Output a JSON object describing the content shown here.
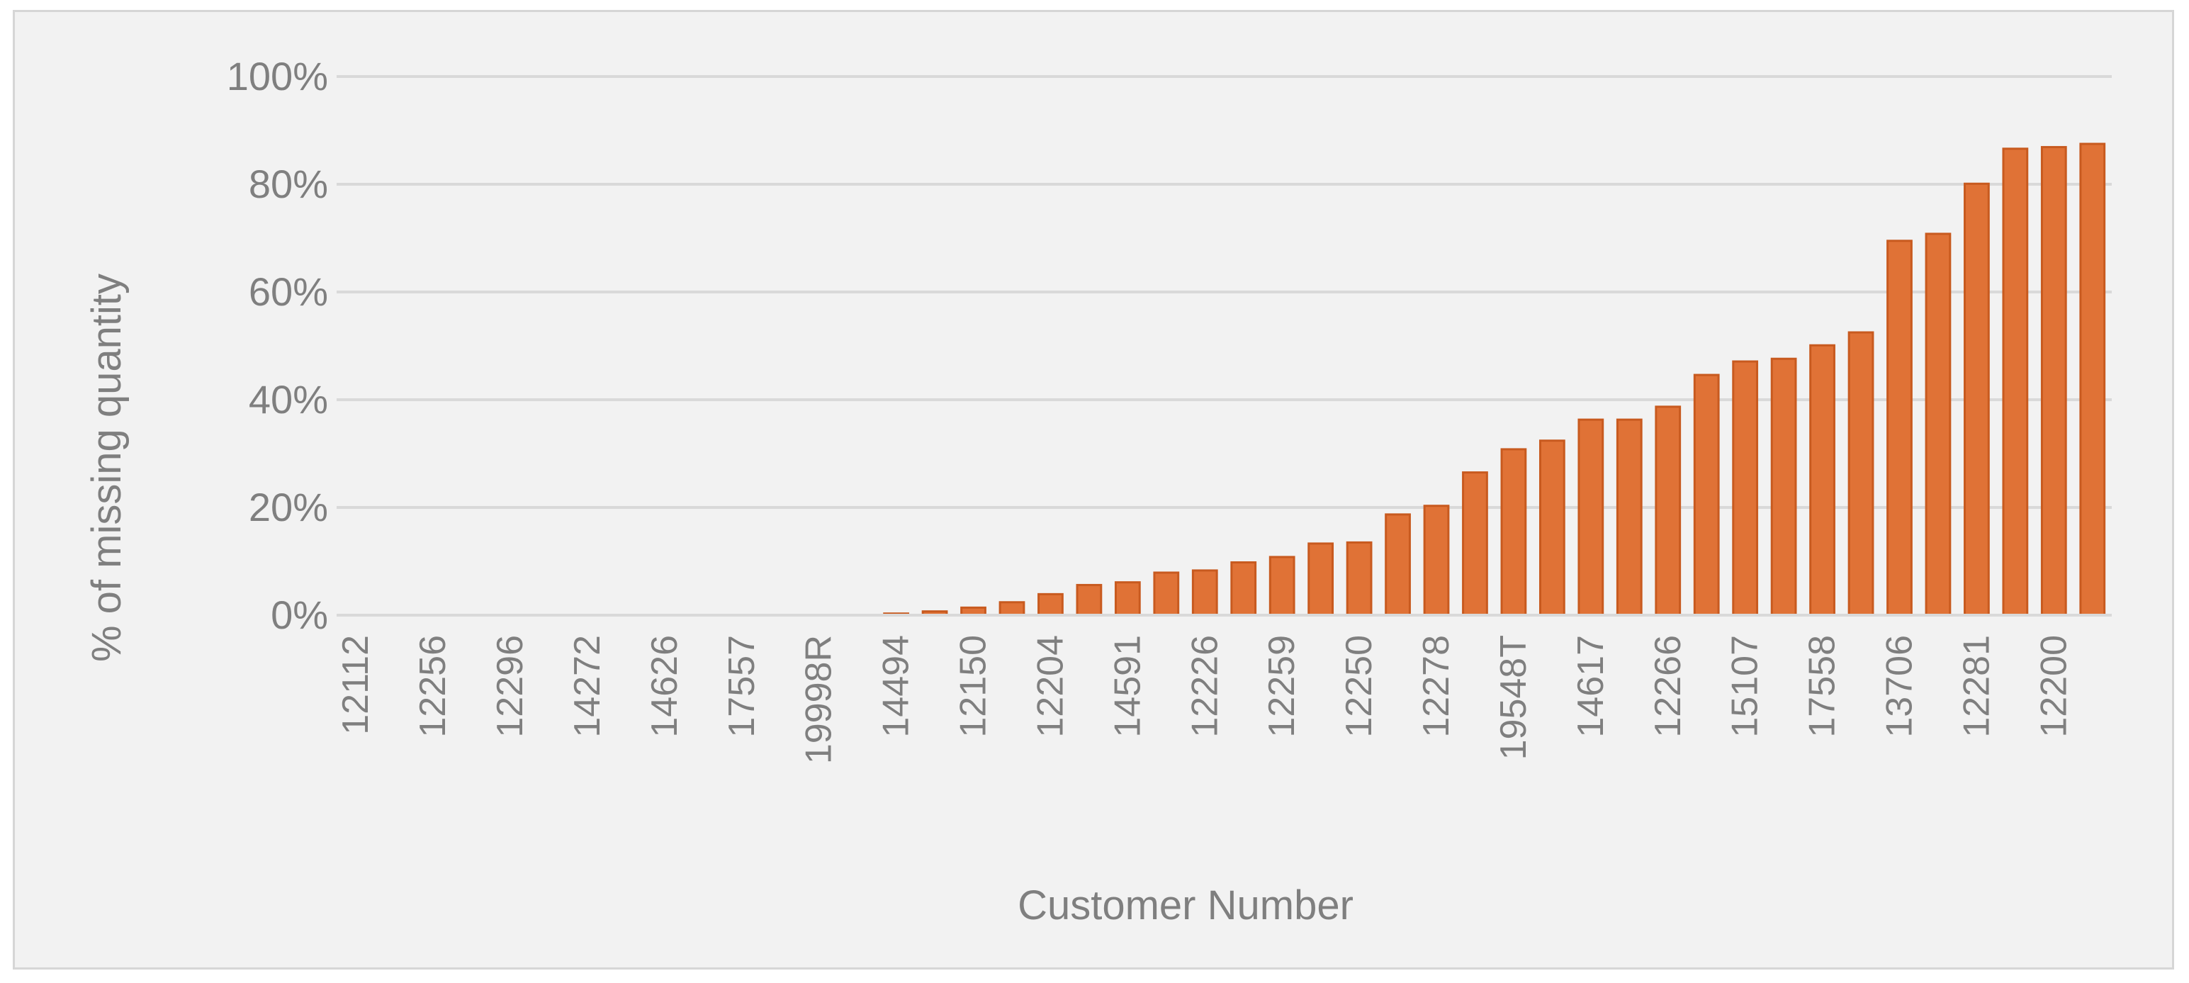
{
  "chart_data": {
    "type": "bar",
    "xlabel": "Customer Number",
    "ylabel": "% of missing quantity",
    "ylim": [
      0,
      100
    ],
    "yticks": [
      0,
      20,
      40,
      60,
      80,
      100
    ],
    "ytick_suffix": "%",
    "grid": true,
    "bar_color": "#e07236",
    "bar_edge_color": "#c85a1f",
    "categories": [
      {
        "label": "12112",
        "value": 0
      },
      {
        "label": "",
        "value": 0
      },
      {
        "label": "12256",
        "value": 0
      },
      {
        "label": "",
        "value": 0
      },
      {
        "label": "12296",
        "value": 0
      },
      {
        "label": "",
        "value": 0
      },
      {
        "label": "14272",
        "value": 0
      },
      {
        "label": "",
        "value": 0
      },
      {
        "label": "14626",
        "value": 0
      },
      {
        "label": "",
        "value": 0
      },
      {
        "label": "17557",
        "value": 0
      },
      {
        "label": "",
        "value": 0
      },
      {
        "label": "19998R",
        "value": 0
      },
      {
        "label": "",
        "value": 0
      },
      {
        "label": "14494",
        "value": 0.3
      },
      {
        "label": "",
        "value": 0.7
      },
      {
        "label": "12150",
        "value": 1.4
      },
      {
        "label": "",
        "value": 2.4
      },
      {
        "label": "12204",
        "value": 3.9
      },
      {
        "label": "",
        "value": 5.6
      },
      {
        "label": "14591",
        "value": 6.1
      },
      {
        "label": "",
        "value": 7.9
      },
      {
        "label": "12226",
        "value": 8.3
      },
      {
        "label": "",
        "value": 9.8
      },
      {
        "label": "12259",
        "value": 10.8
      },
      {
        "label": "",
        "value": 13.3
      },
      {
        "label": "12250",
        "value": 13.5
      },
      {
        "label": "",
        "value": 18.7
      },
      {
        "label": "12278",
        "value": 20.3
      },
      {
        "label": "",
        "value": 26.5
      },
      {
        "label": "19548T",
        "value": 30.8
      },
      {
        "label": "",
        "value": 32.4
      },
      {
        "label": "14617",
        "value": 36.3
      },
      {
        "label": "",
        "value": 36.3
      },
      {
        "label": "12266",
        "value": 38.7
      },
      {
        "label": "",
        "value": 44.6
      },
      {
        "label": "15107",
        "value": 47.1
      },
      {
        "label": "",
        "value": 47.6
      },
      {
        "label": "17558",
        "value": 50.1
      },
      {
        "label": "",
        "value": 52.5
      },
      {
        "label": "13706",
        "value": 69.5
      },
      {
        "label": "",
        "value": 70.8
      },
      {
        "label": "12281",
        "value": 80.1
      },
      {
        "label": "",
        "value": 86.6
      },
      {
        "label": "12200",
        "value": 86.9
      },
      {
        "label": "",
        "value": 87.5
      }
    ]
  }
}
